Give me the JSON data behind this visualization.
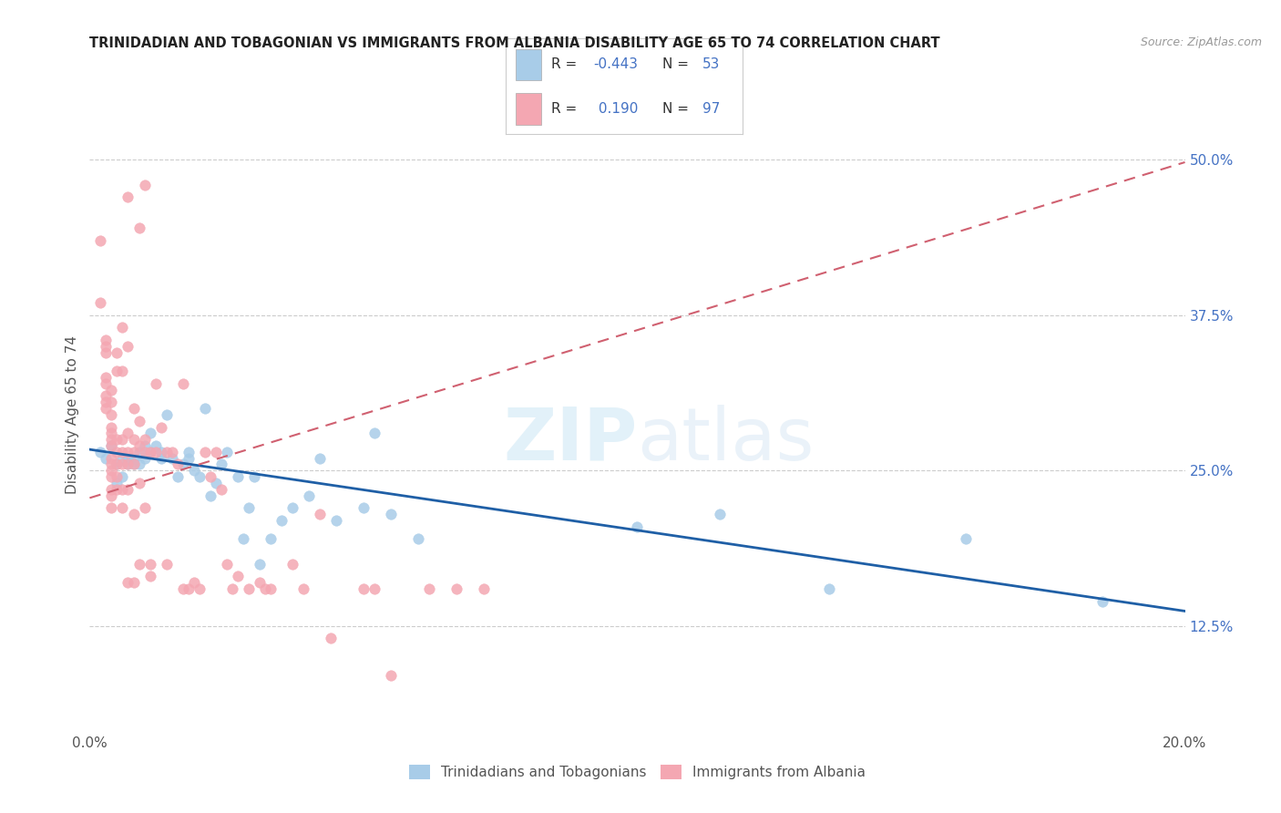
{
  "title": "TRINIDADIAN AND TOBAGONIAN VS IMMIGRANTS FROM ALBANIA DISABILITY AGE 65 TO 74 CORRELATION CHART",
  "source": "Source: ZipAtlas.com",
  "ylabel": "Disability Age 65 to 74",
  "xlim": [
    0.0,
    0.2
  ],
  "ylim": [
    0.04,
    0.55
  ],
  "x_ticks": [
    0.0,
    0.05,
    0.1,
    0.15,
    0.2
  ],
  "x_tick_labels": [
    "0.0%",
    "",
    "",
    "",
    "20.0%"
  ],
  "y_tick_labels_right": [
    "12.5%",
    "25.0%",
    "37.5%",
    "50.0%"
  ],
  "y_tick_values_right": [
    0.125,
    0.25,
    0.375,
    0.5
  ],
  "legend_labels": [
    "Trinidadians and Tobagonians",
    "Immigrants from Albania"
  ],
  "color_blue": "#a8cce8",
  "color_pink": "#f4a7b2",
  "trendline_blue_color": "#1f5fa6",
  "trendline_pink_color": "#d06070",
  "background_color": "#ffffff",
  "watermark_text": "ZIPatlas",
  "blue_scatter": [
    [
      0.002,
      0.265
    ],
    [
      0.003,
      0.26
    ],
    [
      0.004,
      0.27
    ],
    [
      0.005,
      0.24
    ],
    [
      0.005,
      0.255
    ],
    [
      0.006,
      0.245
    ],
    [
      0.006,
      0.26
    ],
    [
      0.007,
      0.255
    ],
    [
      0.007,
      0.26
    ],
    [
      0.008,
      0.255
    ],
    [
      0.008,
      0.26
    ],
    [
      0.009,
      0.265
    ],
    [
      0.009,
      0.255
    ],
    [
      0.01,
      0.27
    ],
    [
      0.01,
      0.26
    ],
    [
      0.011,
      0.265
    ],
    [
      0.011,
      0.28
    ],
    [
      0.012,
      0.27
    ],
    [
      0.013,
      0.26
    ],
    [
      0.013,
      0.265
    ],
    [
      0.014,
      0.295
    ],
    [
      0.015,
      0.26
    ],
    [
      0.016,
      0.245
    ],
    [
      0.017,
      0.255
    ],
    [
      0.018,
      0.26
    ],
    [
      0.018,
      0.265
    ],
    [
      0.019,
      0.25
    ],
    [
      0.02,
      0.245
    ],
    [
      0.021,
      0.3
    ],
    [
      0.022,
      0.23
    ],
    [
      0.023,
      0.24
    ],
    [
      0.024,
      0.255
    ],
    [
      0.025,
      0.265
    ],
    [
      0.027,
      0.245
    ],
    [
      0.028,
      0.195
    ],
    [
      0.029,
      0.22
    ],
    [
      0.03,
      0.245
    ],
    [
      0.031,
      0.175
    ],
    [
      0.033,
      0.195
    ],
    [
      0.035,
      0.21
    ],
    [
      0.037,
      0.22
    ],
    [
      0.04,
      0.23
    ],
    [
      0.042,
      0.26
    ],
    [
      0.045,
      0.21
    ],
    [
      0.05,
      0.22
    ],
    [
      0.052,
      0.28
    ],
    [
      0.055,
      0.215
    ],
    [
      0.06,
      0.195
    ],
    [
      0.1,
      0.205
    ],
    [
      0.115,
      0.215
    ],
    [
      0.135,
      0.155
    ],
    [
      0.16,
      0.195
    ],
    [
      0.185,
      0.145
    ]
  ],
  "pink_scatter": [
    [
      0.002,
      0.435
    ],
    [
      0.002,
      0.385
    ],
    [
      0.003,
      0.345
    ],
    [
      0.003,
      0.355
    ],
    [
      0.003,
      0.35
    ],
    [
      0.003,
      0.325
    ],
    [
      0.003,
      0.32
    ],
    [
      0.003,
      0.31
    ],
    [
      0.003,
      0.305
    ],
    [
      0.003,
      0.3
    ],
    [
      0.004,
      0.315
    ],
    [
      0.004,
      0.305
    ],
    [
      0.004,
      0.295
    ],
    [
      0.004,
      0.285
    ],
    [
      0.004,
      0.28
    ],
    [
      0.004,
      0.275
    ],
    [
      0.004,
      0.27
    ],
    [
      0.004,
      0.26
    ],
    [
      0.004,
      0.255
    ],
    [
      0.004,
      0.25
    ],
    [
      0.004,
      0.245
    ],
    [
      0.004,
      0.235
    ],
    [
      0.004,
      0.23
    ],
    [
      0.004,
      0.22
    ],
    [
      0.005,
      0.345
    ],
    [
      0.005,
      0.33
    ],
    [
      0.005,
      0.275
    ],
    [
      0.005,
      0.265
    ],
    [
      0.005,
      0.255
    ],
    [
      0.005,
      0.245
    ],
    [
      0.005,
      0.235
    ],
    [
      0.006,
      0.365
    ],
    [
      0.006,
      0.33
    ],
    [
      0.006,
      0.275
    ],
    [
      0.006,
      0.265
    ],
    [
      0.006,
      0.255
    ],
    [
      0.006,
      0.235
    ],
    [
      0.006,
      0.22
    ],
    [
      0.007,
      0.35
    ],
    [
      0.007,
      0.28
    ],
    [
      0.007,
      0.265
    ],
    [
      0.007,
      0.255
    ],
    [
      0.007,
      0.235
    ],
    [
      0.007,
      0.16
    ],
    [
      0.008,
      0.3
    ],
    [
      0.008,
      0.275
    ],
    [
      0.008,
      0.265
    ],
    [
      0.008,
      0.255
    ],
    [
      0.008,
      0.215
    ],
    [
      0.008,
      0.16
    ],
    [
      0.009,
      0.445
    ],
    [
      0.009,
      0.29
    ],
    [
      0.009,
      0.27
    ],
    [
      0.009,
      0.24
    ],
    [
      0.009,
      0.175
    ],
    [
      0.01,
      0.275
    ],
    [
      0.01,
      0.265
    ],
    [
      0.01,
      0.22
    ],
    [
      0.011,
      0.265
    ],
    [
      0.011,
      0.175
    ],
    [
      0.011,
      0.165
    ],
    [
      0.012,
      0.32
    ],
    [
      0.012,
      0.265
    ],
    [
      0.013,
      0.285
    ],
    [
      0.014,
      0.265
    ],
    [
      0.014,
      0.175
    ],
    [
      0.015,
      0.265
    ],
    [
      0.016,
      0.255
    ],
    [
      0.017,
      0.32
    ],
    [
      0.017,
      0.155
    ],
    [
      0.018,
      0.155
    ],
    [
      0.019,
      0.16
    ],
    [
      0.02,
      0.155
    ],
    [
      0.021,
      0.265
    ],
    [
      0.022,
      0.245
    ],
    [
      0.023,
      0.265
    ],
    [
      0.024,
      0.235
    ],
    [
      0.025,
      0.175
    ],
    [
      0.026,
      0.155
    ],
    [
      0.027,
      0.165
    ],
    [
      0.029,
      0.155
    ],
    [
      0.031,
      0.16
    ],
    [
      0.032,
      0.155
    ],
    [
      0.033,
      0.155
    ],
    [
      0.037,
      0.175
    ],
    [
      0.039,
      0.155
    ],
    [
      0.042,
      0.215
    ],
    [
      0.044,
      0.115
    ],
    [
      0.05,
      0.155
    ],
    [
      0.052,
      0.155
    ],
    [
      0.055,
      0.085
    ],
    [
      0.062,
      0.155
    ],
    [
      0.067,
      0.155
    ],
    [
      0.072,
      0.155
    ],
    [
      0.01,
      0.48
    ],
    [
      0.007,
      0.47
    ]
  ],
  "blue_trendline_x": [
    0.0,
    0.2
  ],
  "blue_trendline_y": [
    0.267,
    0.137
  ],
  "pink_trendline_x": [
    0.0,
    0.2
  ],
  "pink_trendline_y": [
    0.228,
    0.498
  ]
}
